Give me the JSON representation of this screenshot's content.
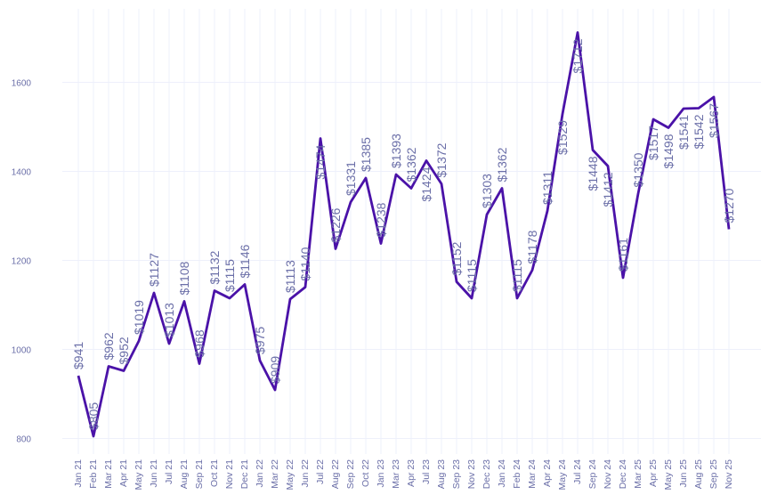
{
  "chart_data": {
    "type": "line",
    "title": "",
    "xlabel": "",
    "ylabel": "",
    "ylim": [
      765,
      1765
    ],
    "yticks": [
      800,
      1000,
      1200,
      1400,
      1600
    ],
    "grid": true,
    "line_color": "#4a12a8",
    "label_color": "#6b6fa8",
    "value_prefix": "$",
    "categories": [
      "Jan 21",
      "Feb 21",
      "Mar 21",
      "Apr 21",
      "May 21",
      "Jun 21",
      "Jul 21",
      "Aug 21",
      "Sep 21",
      "Oct 21",
      "Nov 21",
      "Dec 21",
      "Jan 22",
      "Mar 22",
      "May 22",
      "Jun 22",
      "Jul 22",
      "Aug 22",
      "Sep 22",
      "Oct 22",
      "Jan 23",
      "Mar 23",
      "Apr 23",
      "Jul 23",
      "Aug 23",
      "Sep 23",
      "Nov 23",
      "Dec 23",
      "Jan 24",
      "Feb 24",
      "Mar 24",
      "Apr 24",
      "May 24",
      "Jul 24",
      "Sep 24",
      "Nov 24",
      "Dec 24",
      "Mar 25",
      "Apr 25",
      "May 25",
      "Jun 25",
      "Aug 25",
      "Sep 25",
      "Nov 25"
    ],
    "values": [
      941,
      805,
      962,
      952,
      1019,
      1127,
      1013,
      1108,
      968,
      1132,
      1115,
      1146,
      975,
      909,
      1113,
      1140,
      1474,
      1226,
      1331,
      1385,
      1238,
      1393,
      1362,
      1424,
      1372,
      1152,
      1115,
      1303,
      1362,
      1115,
      1178,
      1311,
      1529,
      1712,
      1448,
      1412,
      1161,
      1350,
      1517,
      1498,
      1541,
      1542,
      1567,
      1270
    ]
  }
}
